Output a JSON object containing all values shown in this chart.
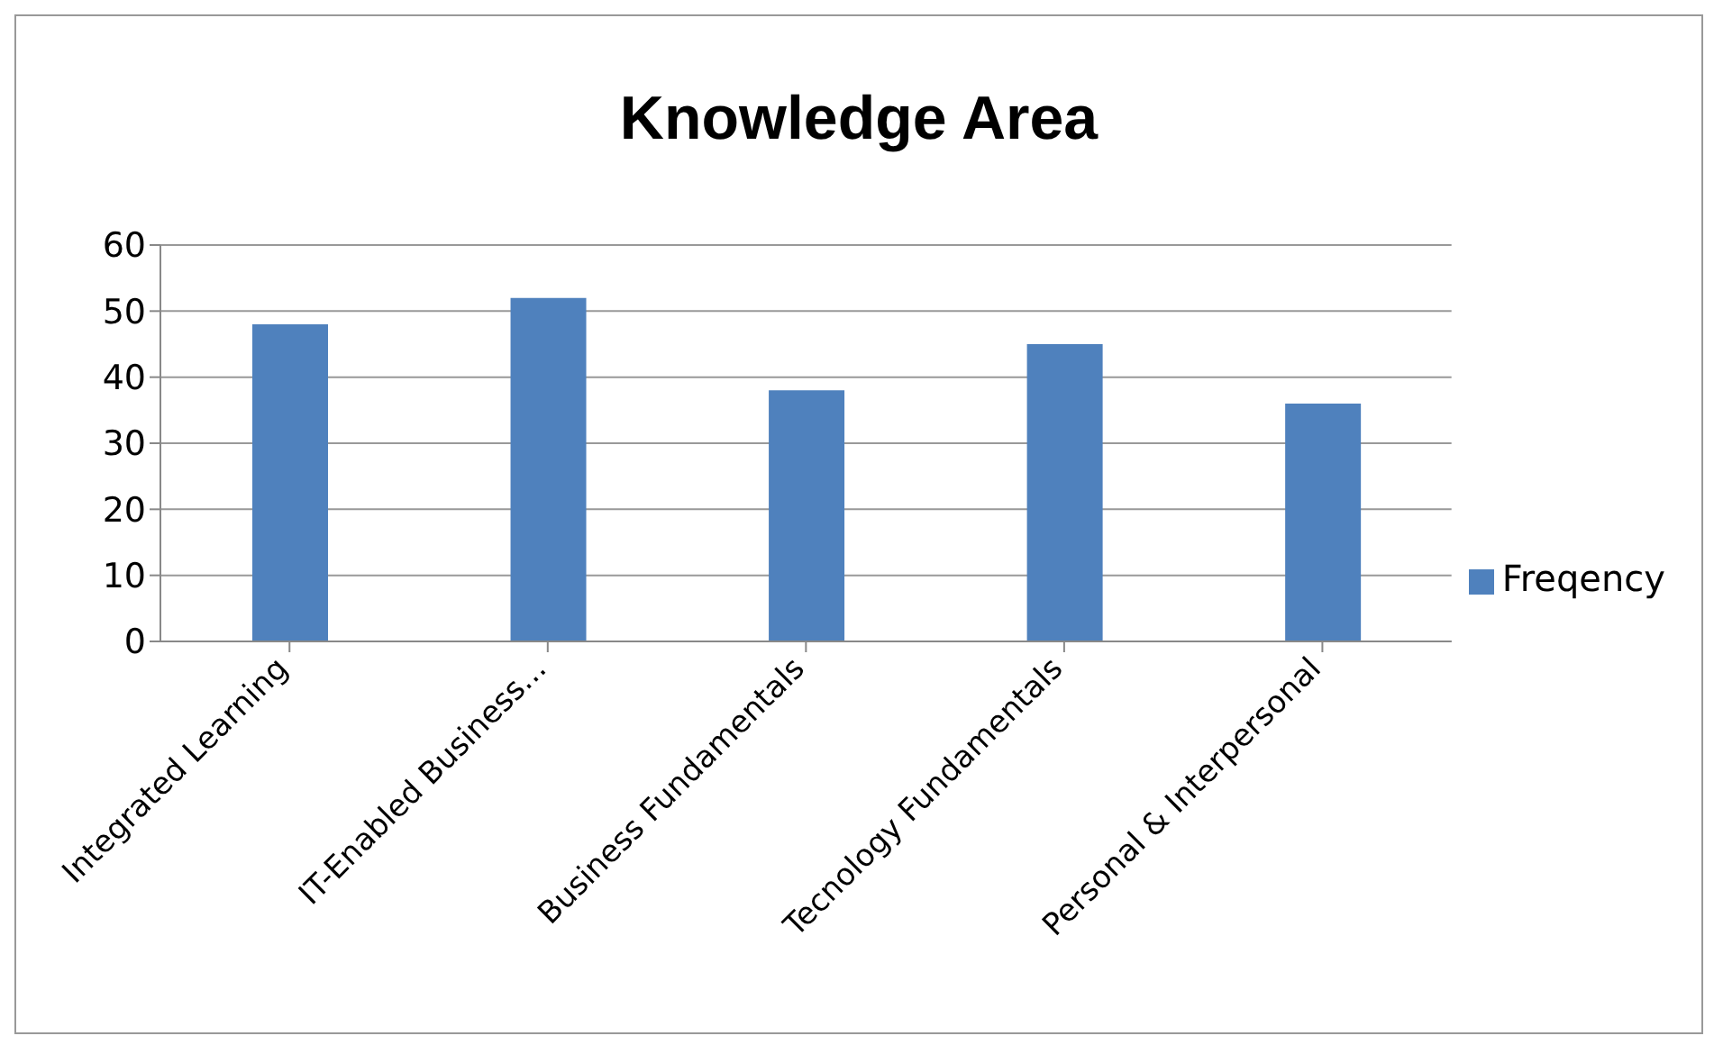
{
  "chart_data": {
    "type": "bar",
    "title": "Knowledge Area",
    "categories": [
      "Integrated Learning",
      "IT-Enabled Business...",
      "Business Fundamentals",
      "Tecnology Fundamentals",
      "Personal & Interpersonal"
    ],
    "series": [
      {
        "name": "Freqency",
        "color": "#4f81bd",
        "values": [
          48,
          52,
          38,
          45,
          36
        ]
      }
    ],
    "ylim": [
      0,
      60
    ],
    "yticks": [
      0,
      10,
      20,
      30,
      40,
      50,
      60
    ],
    "grid": "y",
    "legend": "right"
  }
}
